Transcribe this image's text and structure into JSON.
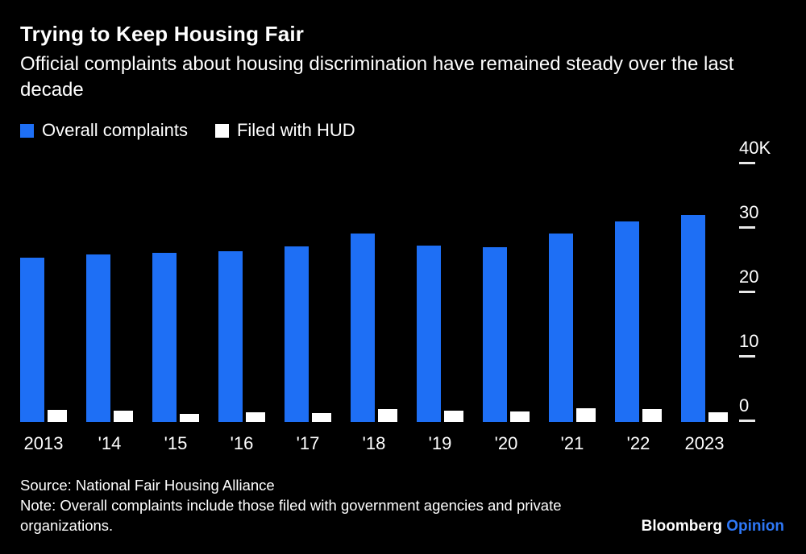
{
  "header": {
    "title": "Trying to Keep Housing Fair",
    "subtitle": "Official complaints about housing discrimination have remained steady over the last decade"
  },
  "legend": [
    {
      "label": "Overall complaints",
      "color": "#1e6ff5"
    },
    {
      "label": "Filed with HUD",
      "color": "#ffffff"
    }
  ],
  "chart_data": {
    "type": "bar",
    "title": "Trying to Keep Housing Fair",
    "subtitle": "Official complaints about housing discrimination have remained steady over the last decade",
    "categories": [
      "2013",
      "'14",
      "'15",
      "'16",
      "'17",
      "'18",
      "'19",
      "'20",
      "'21",
      "'22",
      "2023"
    ],
    "series": [
      {
        "name": "Overall complaints",
        "color": "#1e6ff5",
        "values": [
          25500,
          26000,
          26200,
          26500,
          27200,
          29300,
          27400,
          27100,
          29300,
          31100,
          32100
        ]
      },
      {
        "name": "Filed with HUD",
        "color": "#ffffff",
        "values": [
          1900,
          1800,
          1300,
          1500,
          1400,
          2000,
          1800,
          1600,
          2100,
          2000,
          1500
        ]
      }
    ],
    "ylim": [
      0,
      40000
    ],
    "yticks": [
      {
        "value": 40000,
        "label": "40K"
      },
      {
        "value": 30000,
        "label": "30"
      },
      {
        "value": 20000,
        "label": "20"
      },
      {
        "value": 10000,
        "label": "10"
      },
      {
        "value": 0,
        "label": "0"
      }
    ],
    "grid": false,
    "legend_position": "top",
    "background": "#000000"
  },
  "footer": {
    "source": "Source: National Fair Housing Alliance",
    "note": "Note: Overall complaints include those filed with government agencies and private organizations.",
    "brand": {
      "name": "Bloomberg",
      "sub": "Opinion",
      "accent": "#2e78f7"
    }
  }
}
